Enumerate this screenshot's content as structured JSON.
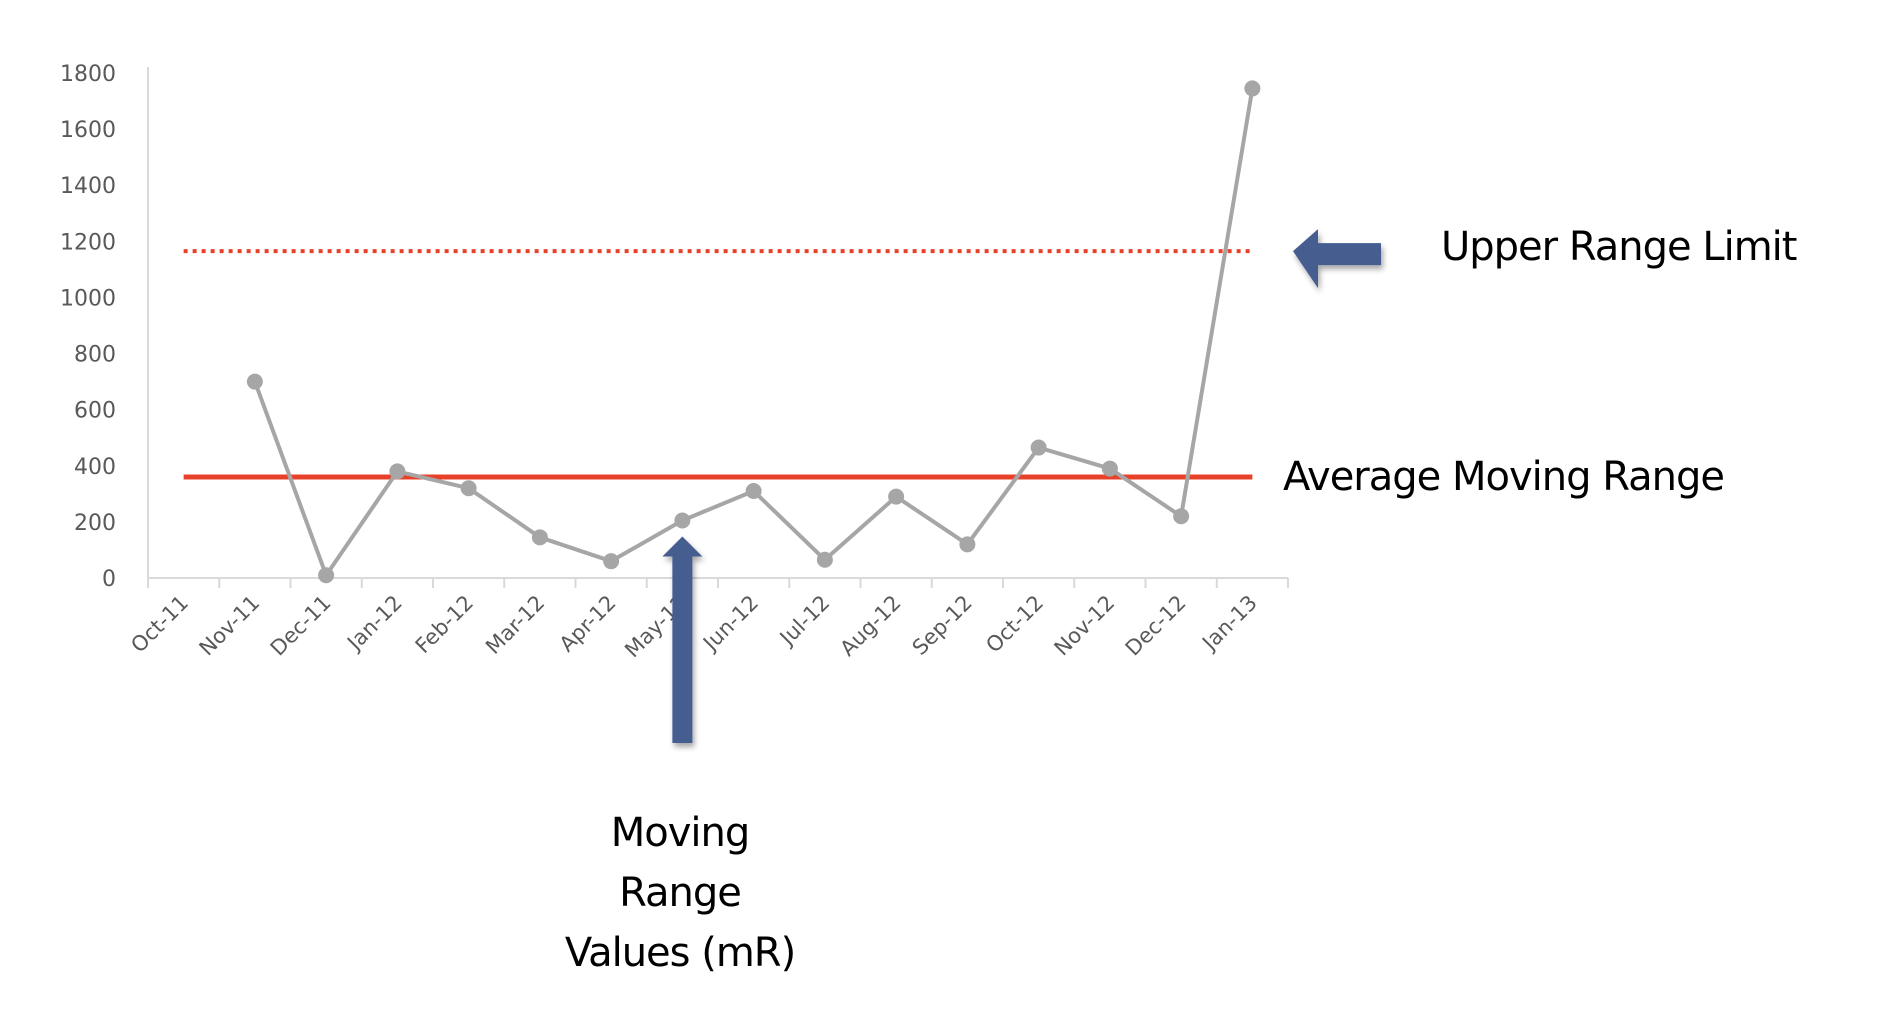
{
  "chart_data": {
    "type": "line",
    "title": "",
    "xlabel": "",
    "ylabel": "",
    "ylim": [
      0,
      1800
    ],
    "yticks": [
      0,
      200,
      400,
      600,
      800,
      1000,
      1200,
      1400,
      1600,
      1800
    ],
    "grid": false,
    "legend": null,
    "categories": [
      "Oct-11",
      "Nov-11",
      "Dec-11",
      "Jan-12",
      "Feb-12",
      "Mar-12",
      "Apr-12",
      "May-12",
      "Jun-12",
      "Jul-12",
      "Aug-12",
      "Sep-12",
      "Oct-12",
      "Nov-12",
      "Dec-12",
      "Jan-13"
    ],
    "series": [
      {
        "name": "Moving Range Values (mR)",
        "color": "#a6a6a6",
        "values": [
          null,
          700,
          10,
          380,
          320,
          145,
          60,
          205,
          310,
          65,
          290,
          120,
          465,
          390,
          220,
          1745
        ]
      }
    ],
    "reference_lines": [
      {
        "name": "Average Moving Range",
        "value": 360,
        "color": "#e8412a",
        "style": "solid"
      },
      {
        "name": "Upper Range Limit",
        "value": 1165,
        "color": "#e8412a",
        "style": "dotted"
      }
    ],
    "annotations": [
      {
        "text": "Upper Range Limit",
        "arrow": "left",
        "points_to": "Upper Range Limit line"
      },
      {
        "text": "Average Moving Range",
        "arrow": null,
        "points_to": "Average Moving Range line"
      },
      {
        "text": "Moving Range Values (mR)",
        "arrow": "up",
        "points_to": "May-12 data point"
      }
    ]
  },
  "labels": {
    "upper_range_limit": "Upper Range Limit",
    "average_moving_range": "Average Moving Range",
    "mr_line1": "Moving",
    "mr_line2": "Range",
    "mr_line3": "Values (mR)"
  },
  "colors": {
    "arrow": "#445d8f",
    "axis": "#d9d9d9",
    "tick_text": "#595959"
  }
}
